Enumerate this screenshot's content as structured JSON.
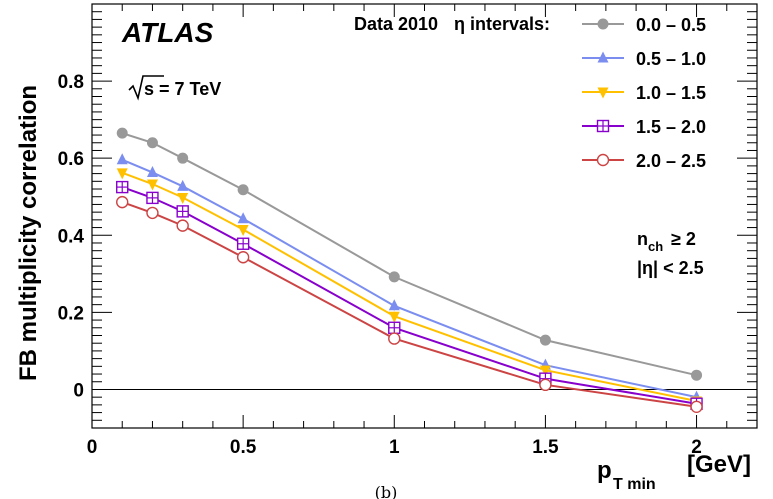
{
  "chart_data": {
    "type": "line",
    "experiment": "ATLAS",
    "energy_label": "s = 7 TeV",
    "legend_header_left": "Data 2010",
    "legend_header_right": "η intervals:",
    "ylabel": "FB multiplicity correlation",
    "xlabel_main": "p",
    "xlabel_sub": "T min",
    "xlabel_unit": "[GeV]",
    "cuts_line1_main": "n",
    "cuts_line1_sub": "ch",
    "cuts_line1_rest": "≥ 2",
    "cuts_line2": "|η| < 2.5",
    "caption": "(b)",
    "xlim": [
      0,
      2.2
    ],
    "ylim": [
      -0.1,
      1.0
    ],
    "xticks": [
      "0",
      "0.5",
      "1",
      "1.5",
      "2"
    ],
    "yticks": [
      "0",
      "0.2",
      "0.4",
      "0.6",
      "0.8"
    ],
    "x": [
      0.1,
      0.2,
      0.3,
      0.5,
      1.0,
      1.5,
      2.0
    ],
    "grid": false,
    "legend_position": "top-right",
    "series": [
      {
        "name": "0.0 – 0.5",
        "color": "#999999",
        "marker": "filled-circle",
        "values": [
          0.665,
          0.64,
          0.6,
          0.518,
          0.292,
          0.128,
          0.037
        ],
        "errors": [
          0.008,
          0.008,
          0.008,
          0.008,
          0.008,
          0.008,
          0.008
        ]
      },
      {
        "name": "0.5 – 1.0",
        "color": "#7b8ef0",
        "marker": "filled-triangle-up",
        "values": [
          0.596,
          0.563,
          0.527,
          0.443,
          0.217,
          0.063,
          -0.02
        ],
        "errors": [
          0.01,
          0.01,
          0.01,
          0.01,
          0.012,
          0.012,
          0.01
        ]
      },
      {
        "name": "1.0 – 1.5",
        "color": "#ffc000",
        "marker": "filled-triangle-down",
        "values": [
          0.562,
          0.533,
          0.498,
          0.415,
          0.19,
          0.05,
          -0.03
        ],
        "errors": [
          0.01,
          0.01,
          0.01,
          0.01,
          0.012,
          0.012,
          0.01
        ]
      },
      {
        "name": "1.5 – 2.0",
        "color": "#8800cc",
        "marker": "open-square-cross",
        "values": [
          0.525,
          0.497,
          0.462,
          0.378,
          0.16,
          0.028,
          -0.037
        ],
        "errors": [
          0.012,
          0.012,
          0.012,
          0.012,
          0.014,
          0.012,
          0.01
        ]
      },
      {
        "name": "2.0 – 2.5",
        "color": "#cc4444",
        "marker": "open-circle",
        "values": [
          0.486,
          0.458,
          0.425,
          0.343,
          0.132,
          0.012,
          -0.045
        ],
        "errors": [
          0.012,
          0.012,
          0.012,
          0.012,
          0.014,
          0.012,
          0.01
        ]
      }
    ]
  }
}
